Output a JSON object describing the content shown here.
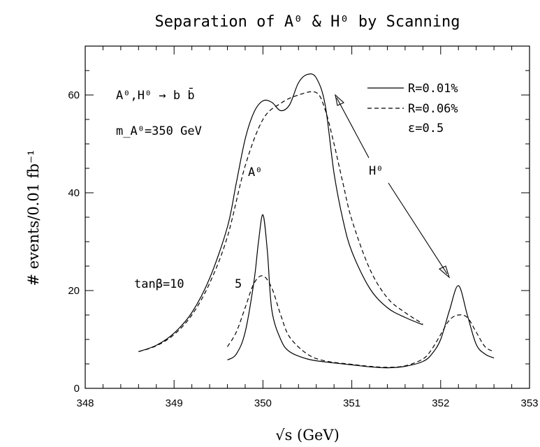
{
  "chart_data": {
    "type": "line",
    "title": "Separation of A⁰ & H⁰ by Scanning",
    "xlabel": "√s  (GeV)",
    "ylabel": "# events/0.01 fb⁻¹",
    "xlim": [
      348,
      353
    ],
    "ylim": [
      0,
      70
    ],
    "x_ticks": [
      348,
      349,
      350,
      351,
      352,
      353
    ],
    "y_ticks": [
      0,
      20,
      40,
      60
    ],
    "grid": false,
    "legend_position": "top-right",
    "legend": [
      {
        "label": "R=0.01%",
        "style": "solid"
      },
      {
        "label": "R=0.06%",
        "style": "dashed"
      }
    ],
    "annotations": {
      "process": "A⁰,H⁰ → b b̄",
      "mass": "m_A⁰=350 GeV",
      "epsilon": "ε=0.5",
      "a0_label": "A⁰",
      "h0_label": "H⁰",
      "tanb10": "tanβ=10",
      "tanb5": "5"
    },
    "series": [
      {
        "name": "R=0.01%",
        "group": "tanβ=10",
        "style": "solid",
        "x": [
          348.6,
          348.8,
          349.0,
          349.2,
          349.4,
          349.6,
          349.7,
          349.8,
          349.9,
          350.0,
          350.1,
          350.2,
          350.3,
          350.4,
          350.5,
          350.6,
          350.7,
          350.8,
          350.9,
          351.0,
          351.2,
          351.4,
          351.6,
          351.8
        ],
        "y": [
          7.5,
          8.8,
          11.3,
          15.5,
          22.5,
          33.0,
          42.0,
          51.0,
          56.5,
          58.8,
          58.5,
          56.8,
          58.0,
          62.5,
          64.2,
          63.5,
          58.0,
          44.0,
          34.5,
          28.0,
          20.5,
          16.5,
          14.5,
          13.0
        ]
      },
      {
        "name": "R=0.06%",
        "group": "tanβ=10",
        "style": "dashed",
        "x": [
          348.6,
          348.8,
          349.0,
          349.2,
          349.4,
          349.6,
          349.8,
          350.0,
          350.2,
          350.4,
          350.6,
          350.7,
          350.8,
          350.9,
          351.0,
          351.2,
          351.4,
          351.6,
          351.8
        ],
        "y": [
          7.5,
          8.7,
          11.0,
          15.0,
          21.5,
          31.0,
          45.5,
          55.0,
          58.3,
          60.0,
          60.5,
          57.0,
          50.0,
          42.0,
          34.5,
          24.5,
          18.5,
          15.5,
          13.2
        ]
      },
      {
        "name": "R=0.01%",
        "group": "tanβ=5",
        "style": "solid",
        "x": [
          349.6,
          349.7,
          349.8,
          349.9,
          349.95,
          350.0,
          350.05,
          350.1,
          350.2,
          350.3,
          350.5,
          350.7,
          351.0,
          351.2,
          351.4,
          351.6,
          351.8,
          351.9,
          352.0,
          352.1,
          352.2,
          352.3,
          352.4,
          352.5,
          352.6
        ],
        "y": [
          5.8,
          7.0,
          11.5,
          22.0,
          30.0,
          35.5,
          28.0,
          16.0,
          10.0,
          7.5,
          6.0,
          5.4,
          4.8,
          4.4,
          4.2,
          4.5,
          5.5,
          7.0,
          10.0,
          16.0,
          21.0,
          15.0,
          9.0,
          7.0,
          6.2
        ]
      },
      {
        "name": "R=0.06%",
        "group": "tanβ=5",
        "style": "dashed",
        "x": [
          349.6,
          349.7,
          349.8,
          349.9,
          350.0,
          350.1,
          350.2,
          350.3,
          350.5,
          350.7,
          351.0,
          351.2,
          351.4,
          351.6,
          351.8,
          351.9,
          352.0,
          352.1,
          352.2,
          352.3,
          352.4,
          352.5,
          352.6
        ],
        "y": [
          8.5,
          11.5,
          16.5,
          21.5,
          23.0,
          20.5,
          15.0,
          10.5,
          7.0,
          5.6,
          4.9,
          4.5,
          4.3,
          4.6,
          6.0,
          8.0,
          11.0,
          14.0,
          15.0,
          14.5,
          11.5,
          8.5,
          7.5
        ]
      }
    ]
  }
}
